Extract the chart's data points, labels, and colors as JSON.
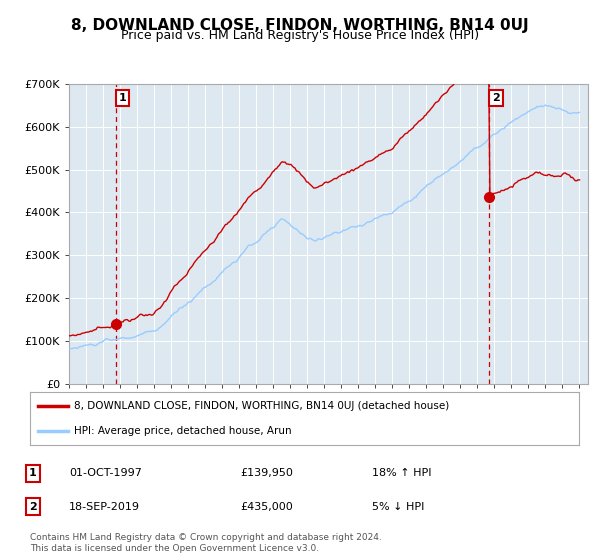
{
  "title": "8, DOWNLAND CLOSE, FINDON, WORTHING, BN14 0UJ",
  "subtitle": "Price paid vs. HM Land Registry's House Price Index (HPI)",
  "legend_line1": "8, DOWNLAND CLOSE, FINDON, WORTHING, BN14 0UJ (detached house)",
  "legend_line2": "HPI: Average price, detached house, Arun",
  "transaction1_label": "1",
  "transaction1_date": "01-OCT-1997",
  "transaction1_price": "£139,950",
  "transaction1_hpi": "18% ↑ HPI",
  "transaction2_label": "2",
  "transaction2_date": "18-SEP-2019",
  "transaction2_price": "£435,000",
  "transaction2_hpi": "5% ↓ HPI",
  "footer": "Contains HM Land Registry data © Crown copyright and database right 2024.\nThis data is licensed under the Open Government Licence v3.0.",
  "line_color_red": "#cc0000",
  "line_color_blue": "#99ccff",
  "marker_color": "#cc0000",
  "dashed_color": "#cc0000",
  "background_color": "#ffffff",
  "plot_bg_color": "#dde8f0",
  "grid_color": "#ffffff",
  "ylim": [
    0,
    700000
  ],
  "yticks": [
    0,
    100000,
    200000,
    300000,
    400000,
    500000,
    600000,
    700000
  ],
  "ytick_labels": [
    "£0",
    "£100K",
    "£200K",
    "£300K",
    "£400K",
    "£500K",
    "£600K",
    "£700K"
  ],
  "xstart_year": 1995,
  "xend_year": 2025
}
